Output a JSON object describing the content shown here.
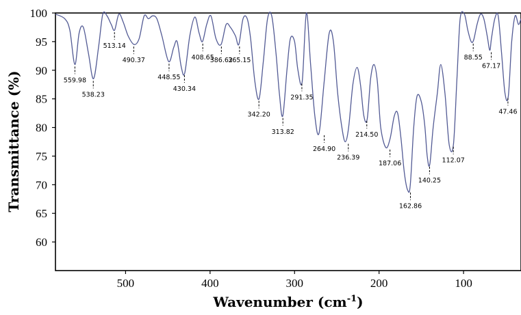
{
  "chart_data": {
    "type": "line",
    "title": "",
    "xlabel": "Wavenumber (cm",
    "xlabel_sup": "-1",
    "xlabel_end": ")",
    "ylabel": "Transmittance (%)",
    "xlim": [
      583,
      32
    ],
    "ylim": [
      55,
      100
    ],
    "x_ticks": [
      500,
      400,
      300,
      200,
      100
    ],
    "y_ticks": [
      100,
      95,
      90,
      85,
      80,
      75,
      70,
      65,
      60
    ],
    "grid": false,
    "line_color": "#525a94",
    "series": [
      {
        "x": [
          583,
          572,
          566,
          560,
          555,
          550,
          544,
          538,
          532,
          527,
          522,
          517,
          513,
          508,
          503,
          497,
          490,
          484,
          478,
          473,
          468,
          463,
          457,
          449,
          443,
          439,
          434,
          430,
          424,
          418,
          413,
          409,
          404,
          399,
          393,
          387,
          381,
          376,
          370,
          366,
          361,
          356,
          352,
          347,
          342,
          337,
          332,
          327,
          322,
          318,
          314,
          309,
          305,
          300,
          296,
          291,
          286,
          281,
          276,
          271,
          265,
          259,
          254,
          249,
          244,
          240,
          236,
          231,
          226,
          222,
          218,
          214,
          210,
          206,
          202,
          198,
          192,
          187,
          182,
          178,
          174,
          170,
          166,
          163,
          159,
          155,
          150,
          146,
          143,
          140,
          136,
          131,
          127,
          122,
          117,
          112,
          108,
          104,
          99,
          95,
          91,
          88,
          84,
          80,
          76,
          72,
          69,
          67,
          63,
          59,
          55,
          51,
          47,
          43,
          39,
          35,
          32
        ],
        "y": [
          99.8,
          99.0,
          97.0,
          91.0,
          96.5,
          97.5,
          93.0,
          88.5,
          94.0,
          99.8,
          99.5,
          98.0,
          97.0,
          99.8,
          98.5,
          96.0,
          94.5,
          95.5,
          99.5,
          99.0,
          99.5,
          99.0,
          96.0,
          91.5,
          94.0,
          95.0,
          90.5,
          89.5,
          96.0,
          99.3,
          96.5,
          95.0,
          98.0,
          99.5,
          95.5,
          94.5,
          98.0,
          97.5,
          96.0,
          94.5,
          99.0,
          99.0,
          95.5,
          88.0,
          85.0,
          91.5,
          99.0,
          99.5,
          93.0,
          86.0,
          82.0,
          90.0,
          95.5,
          95.0,
          90.0,
          88.0,
          100.0,
          91.0,
          82.0,
          79.0,
          88.0,
          96.5,
          95.0,
          86.0,
          80.0,
          77.5,
          80.0,
          87.5,
          90.5,
          87.5,
          82.0,
          81.5,
          88.5,
          91.0,
          88.0,
          80.0,
          76.5,
          78.0,
          82.0,
          82.5,
          78.0,
          72.0,
          69.0,
          70.0,
          80.0,
          85.5,
          84.5,
          80.5,
          75.0,
          73.5,
          80.0,
          86.0,
          91.0,
          86.0,
          77.0,
          77.0,
          88.0,
          99.0,
          99.8,
          97.0,
          95.0,
          95.3,
          98.0,
          99.8,
          99.0,
          96.0,
          93.5,
          95.5,
          99.0,
          99.5,
          93.0,
          86.0,
          85.5,
          95.0,
          99.5,
          98.0,
          99.0
        ]
      }
    ],
    "annotations": [
      {
        "label": "559.98",
        "x": 559.98,
        "y": 91.0
      },
      {
        "label": "538.23",
        "x": 538.23,
        "y": 88.5
      },
      {
        "label": "513.14",
        "x": 513.14,
        "y": 97.0
      },
      {
        "label": "490.37",
        "x": 490.37,
        "y": 94.5
      },
      {
        "label": "448.55",
        "x": 448.55,
        "y": 91.5
      },
      {
        "label": "430.34",
        "x": 430.34,
        "y": 89.5
      },
      {
        "label": "408.65",
        "x": 408.65,
        "y": 95.0
      },
      {
        "label": "386.62",
        "x": 386.62,
        "y": 94.5
      },
      {
        "label": "365.15",
        "x": 365.15,
        "y": 94.5
      },
      {
        "label": "342.20",
        "x": 342.2,
        "y": 85.0
      },
      {
        "label": "313.82",
        "x": 313.82,
        "y": 82.0
      },
      {
        "label": "291.35",
        "x": 291.35,
        "y": 88.0
      },
      {
        "label": "264.90",
        "x": 264.9,
        "y": 79.0
      },
      {
        "label": "236.39",
        "x": 236.39,
        "y": 77.5
      },
      {
        "label": "214.50",
        "x": 214.5,
        "y": 81.5
      },
      {
        "label": "187.06",
        "x": 187.06,
        "y": 76.5
      },
      {
        "label": "162.86",
        "x": 162.86,
        "y": 69.0
      },
      {
        "label": "140.25",
        "x": 140.25,
        "y": 73.5
      },
      {
        "label": "112.07",
        "x": 112.07,
        "y": 77.0
      },
      {
        "label": "88.55",
        "x": 88.55,
        "y": 95.0
      },
      {
        "label": "67.17",
        "x": 67.17,
        "y": 93.5
      },
      {
        "label": "47.46",
        "x": 47.46,
        "y": 85.5
      }
    ]
  }
}
